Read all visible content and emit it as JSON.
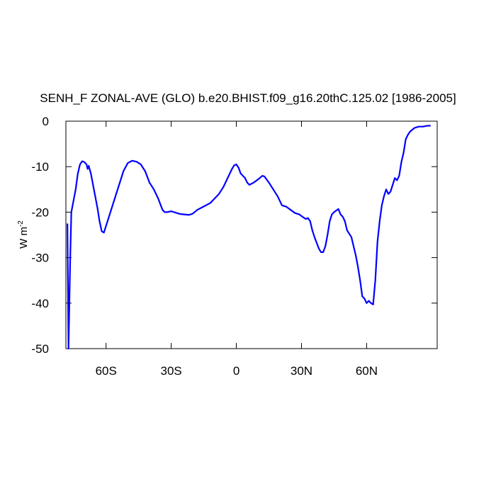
{
  "chart_data": {
    "type": "line",
    "title": "SENH_F ZONAL-AVE (GLO) b.e20.BHIST.f09_g16.20thC.125.02 [1986-2005]",
    "ylabel": "W m",
    "ylabel_superscript": "-2",
    "xlim": [
      -78.5,
      92.5
    ],
    "xticks": [
      {
        "value": -60,
        "label": "60S"
      },
      {
        "value": -30,
        "label": "30S"
      },
      0,
      {
        "value": 30,
        "label": "30N"
      },
      {
        "value": 60,
        "label": "60N"
      }
    ],
    "ylim": [
      -50,
      0
    ],
    "yticks": [
      0,
      -10,
      -20,
      -30,
      -40,
      -50
    ],
    "series": [
      {
        "color": "#0000ff",
        "x": [
          -77.8,
          -77.3,
          -76.5,
          -76,
          -75,
          -74,
          -73,
          -72,
          -71,
          -70,
          -69,
          -68.5,
          -68,
          -67,
          -66,
          -65,
          -64,
          -63,
          -62,
          -61,
          -60,
          -58,
          -56,
          -54,
          -52,
          -50,
          -48,
          -46,
          -44,
          -42,
          -40,
          -38,
          -36,
          -34,
          -33,
          -32,
          -30,
          -28,
          -26,
          -24,
          -22,
          -21,
          -20,
          -18,
          -16,
          -14,
          -12,
          -10,
          -8,
          -6,
          -4,
          -2,
          -1,
          0,
          1,
          2,
          4,
          5,
          6,
          8,
          10,
          12,
          13,
          15,
          17,
          19,
          21,
          23,
          25,
          27,
          29,
          31,
          32,
          33,
          34,
          35,
          36,
          38,
          39,
          40,
          41,
          42,
          43,
          44,
          45,
          47,
          48,
          49,
          50,
          51,
          53,
          55,
          56,
          57,
          58,
          59,
          60,
          61,
          62,
          63,
          64,
          65,
          66,
          67,
          68,
          69,
          70,
          71,
          72,
          73,
          74,
          75,
          76,
          77,
          78,
          79,
          80,
          82,
          84,
          86,
          88,
          89.5
        ],
        "values": [
          -22.5,
          -50,
          -30,
          -20,
          -17.5,
          -15,
          -11.5,
          -9.5,
          -8.8,
          -9,
          -9.5,
          -10.5,
          -9.8,
          -11.5,
          -14,
          -16.5,
          -19,
          -22,
          -24.2,
          -24.5,
          -23,
          -20,
          -17,
          -14,
          -11,
          -9.2,
          -8.7,
          -8.9,
          -9.5,
          -11,
          -13.5,
          -15,
          -17,
          -19.5,
          -20,
          -20,
          -19.8,
          -20.1,
          -20.4,
          -20.5,
          -20.6,
          -20.5,
          -20.3,
          -19.5,
          -19,
          -18.5,
          -18,
          -17,
          -16,
          -14.5,
          -12.5,
          -10.5,
          -9.7,
          -9.5,
          -10.2,
          -11.5,
          -12.5,
          -13.5,
          -14,
          -13.5,
          -12.8,
          -12,
          -12.2,
          -13.5,
          -15,
          -16.5,
          -18.5,
          -18.8,
          -19.5,
          -20.2,
          -20.5,
          -21.2,
          -21.5,
          -21.3,
          -22,
          -24,
          -25.5,
          -28,
          -28.8,
          -28.8,
          -27.5,
          -25,
          -22,
          -20.5,
          -20,
          -19.3,
          -20.5,
          -21,
          -22,
          -24,
          -25.5,
          -29.5,
          -32,
          -35,
          -38.5,
          -39,
          -40,
          -39.5,
          -40,
          -40.3,
          -35,
          -26.5,
          -22,
          -18.5,
          -16.5,
          -15,
          -16,
          -15.5,
          -14,
          -12.5,
          -13,
          -12,
          -9,
          -7,
          -4,
          -3,
          -2.3,
          -1.5,
          -1.2,
          -1.2,
          -1,
          -1
        ]
      }
    ]
  }
}
